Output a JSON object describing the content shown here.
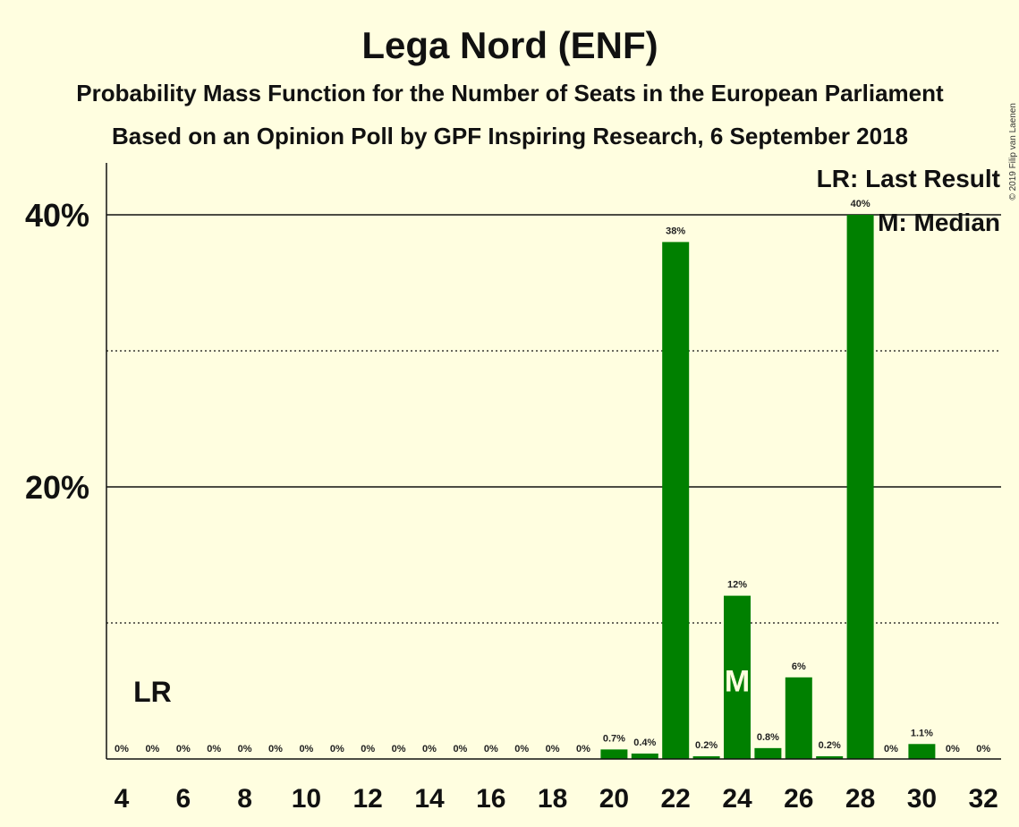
{
  "header": {
    "title": "Lega Nord (ENF)",
    "subtitle1": "Probability Mass Function for the Number of Seats in the European Parliament",
    "subtitle2": "Based on an Opinion Poll by GPF Inspiring Research, 6 September 2018",
    "copyright": "© 2019 Filip van Laenen"
  },
  "legend": {
    "last_result": "LR: Last Result",
    "median": "M: Median"
  },
  "markers": {
    "last_result_label": "LR",
    "last_result_seat": 5,
    "median_label": "M",
    "median_seat": 24
  },
  "colors": {
    "background": "#FFFEE0",
    "bar": "#008000",
    "text": "#111111"
  },
  "chart_data": {
    "type": "bar",
    "title": "Lega Nord (ENF)",
    "xlabel": "",
    "ylabel": "",
    "ylim": [
      0,
      44
    ],
    "y_ticks": [
      {
        "value": 20,
        "label": "20%"
      },
      {
        "value": 40,
        "label": "40%"
      }
    ],
    "minor_gridlines": [
      10,
      30
    ],
    "x_tick_labels": [
      "4",
      "6",
      "8",
      "10",
      "12",
      "14",
      "16",
      "18",
      "20",
      "22",
      "24",
      "26",
      "28",
      "30",
      "32"
    ],
    "seats": [
      4,
      5,
      6,
      7,
      8,
      9,
      10,
      11,
      12,
      13,
      14,
      15,
      16,
      17,
      18,
      19,
      20,
      21,
      22,
      23,
      24,
      25,
      26,
      27,
      28,
      29,
      30,
      31,
      32
    ],
    "values": [
      0,
      0,
      0,
      0,
      0,
      0,
      0,
      0,
      0,
      0,
      0,
      0,
      0,
      0,
      0,
      0,
      0.7,
      0.4,
      38,
      0.2,
      12,
      0.8,
      6,
      0.2,
      40,
      0,
      1.1,
      0,
      0
    ],
    "labels": [
      "0%",
      "0%",
      "0%",
      "0%",
      "0%",
      "0%",
      "0%",
      "0%",
      "0%",
      "0%",
      "0%",
      "0%",
      "0%",
      "0%",
      "0%",
      "0%",
      "0.7%",
      "0.4%",
      "38%",
      "0.2%",
      "12%",
      "0.8%",
      "6%",
      "0.2%",
      "40%",
      "0%",
      "1.1%",
      "0%",
      "0%"
    ],
    "legend_position": "top-right"
  }
}
